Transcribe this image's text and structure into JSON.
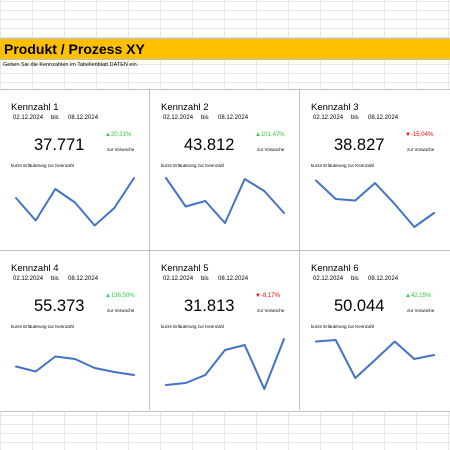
{
  "title": "Produkt / Prozess XY",
  "instruction": "Geben Sie die Kennzahlen im Tabellenblatt DATEN ein.",
  "colors": {
    "title_bar": "#ffc000",
    "line": "#4472c4",
    "positive": "#2ecc40",
    "negative": "#ff0000"
  },
  "cards": [
    {
      "name": "Kennzahl 1",
      "date_from": "02.12.2024",
      "bis": "bis",
      "date_to": "08.12.2024",
      "value": "37.771",
      "delta": "20,31%",
      "direction": "up",
      "arrow": "▲",
      "vs_label": "zur Vorwoche",
      "explanation": "kurze Erläuterung zur Kennzahl",
      "trend": [
        0.4,
        0.85,
        0.22,
        0.49,
        0.95,
        0.6,
        0.0
      ]
    },
    {
      "name": "Kennzahl 2",
      "date_from": "02.12.2024",
      "bis": "bis",
      "date_to": "08.12.2024",
      "value": "43.812",
      "delta": "101,47%",
      "direction": "up",
      "arrow": "▲",
      "vs_label": "zur Vorwoche",
      "explanation": "kurze Erläuterung zur Kennzahl",
      "trend": [
        0.0,
        0.57,
        0.46,
        0.9,
        0.02,
        0.26,
        0.7
      ]
    },
    {
      "name": "Kennzahl 3",
      "date_from": "02.12.2024",
      "bis": "bis",
      "date_to": "08.12.2024",
      "value": "38.827",
      "delta": "-15,04%",
      "direction": "down",
      "arrow": "▼",
      "vs_label": "zur Vorwoche",
      "explanation": "kurze Erläuterung zur Kennzahl",
      "trend": [
        0.05,
        0.42,
        0.45,
        0.1,
        0.52,
        0.98,
        0.7
      ]
    },
    {
      "name": "Kennzahl 4",
      "date_from": "02.12.2024",
      "bis": "bis",
      "date_to": "08.12.2024",
      "value": "55.373",
      "delta": "136,50%",
      "direction": "up",
      "arrow": "▲",
      "vs_label": "zur Vorwoche",
      "explanation": "kurze Erläuterung zur Kennzahl",
      "trend": [
        0.55,
        0.65,
        0.35,
        0.4,
        0.58,
        0.66,
        0.72
      ]
    },
    {
      "name": "Kennzahl 5",
      "date_from": "02.12.2024",
      "bis": "bis",
      "date_to": "08.12.2024",
      "value": "31.813",
      "delta": "-8,17%",
      "direction": "down",
      "arrow": "▼",
      "vs_label": "zur Vorwoche",
      "explanation": "kurze Erläuterung zur Kennzahl",
      "trend": [
        0.92,
        0.88,
        0.72,
        0.22,
        0.12,
        1.0,
        0.0
      ]
    },
    {
      "name": "Kennzahl 6",
      "date_from": "02.12.2024",
      "bis": "bis",
      "date_to": "08.12.2024",
      "value": "50.044",
      "delta": "42,15%",
      "direction": "up",
      "arrow": "▲",
      "vs_label": "zur Vorwoche",
      "explanation": "kurze Erläuterung zur Kennzahl",
      "trend": [
        0.05,
        0.02,
        0.78,
        0.42,
        0.05,
        0.4,
        0.32
      ]
    }
  ]
}
